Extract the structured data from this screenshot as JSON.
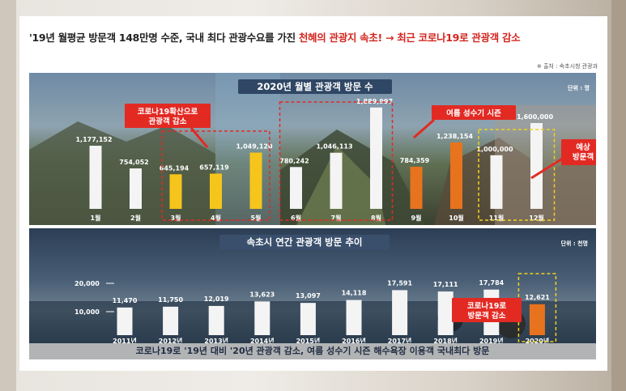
{
  "headline": {
    "part1": "'19년 월평균 방문객 148만명 수준, 국내 최다 관광수요를 가진 ",
    "part2": "천혜의 관광지 속초! → 최근 코로나19로 관광객 감소"
  },
  "source": "※ 출처 : 속초시청 관광과",
  "colors": {
    "white_bar": "#f4f4f4",
    "yellow_bar": "#f6c51b",
    "orange_bar": "#e8731e",
    "red_box": "#e22a23",
    "yellow_box": "#f3d21d",
    "title_bg": "#2f4664"
  },
  "chart_data": [
    {
      "type": "bar",
      "title": "2020년 월별 관광객 방문 수",
      "unit": "단위 : 명",
      "categories": [
        "1월",
        "2월",
        "3월",
        "4월",
        "5월",
        "6월",
        "7월",
        "8월",
        "9월",
        "10월",
        "11월",
        "12월"
      ],
      "values": [
        1177152,
        754052,
        645194,
        657119,
        1049120,
        780242,
        1046113,
        1889997,
        784359,
        1238154,
        1000000,
        1600000
      ],
      "labels": [
        "1,177,152",
        "754,052",
        "645,194",
        "657,119",
        "1,049,120",
        "780,242",
        "1,046,113",
        "1,889,997",
        "784,359",
        "1,238,154",
        "1,000,000",
        "1,600,000"
      ],
      "colors": [
        "white",
        "white",
        "yellow",
        "yellow",
        "yellow",
        "white",
        "white",
        "white",
        "orange",
        "orange",
        "white",
        "white"
      ],
      "ylim": [
        0,
        2000000
      ],
      "annotations": [
        {
          "text": "코로나19확산으로\n관광객 감소"
        },
        {
          "text": "여름 성수기 시즌"
        },
        {
          "text": "예상\n방문객"
        }
      ]
    },
    {
      "type": "bar",
      "title": "속초시 연간 관광객 방문 추이",
      "unit": "단위 : 천명",
      "categories": [
        "2011년",
        "2012년",
        "2013년",
        "2014년",
        "2015년",
        "2016년",
        "2017년",
        "2018년",
        "2019년",
        "2020년"
      ],
      "values": [
        11470,
        11750,
        12019,
        13623,
        13097,
        14118,
        17591,
        17111,
        17784,
        12621
      ],
      "labels": [
        "11,470",
        "11,750",
        "12,019",
        "13,623",
        "13,097",
        "14,118",
        "17,591",
        "17,111",
        "17,784",
        "12,621"
      ],
      "colors": [
        "white",
        "white",
        "white",
        "white",
        "white",
        "white",
        "white",
        "white",
        "white",
        "orange"
      ],
      "yticks": [
        "20,000",
        "10,000"
      ],
      "ylim": [
        0,
        20000
      ],
      "annotations": [
        {
          "text": "코로나19로\n방문객 감소"
        }
      ]
    }
  ],
  "footer": "코로나19로 '19년 대비 '20년 관광객 감소, 여름 성수기 시즌 해수욕장 이용객 국내최다 방문"
}
